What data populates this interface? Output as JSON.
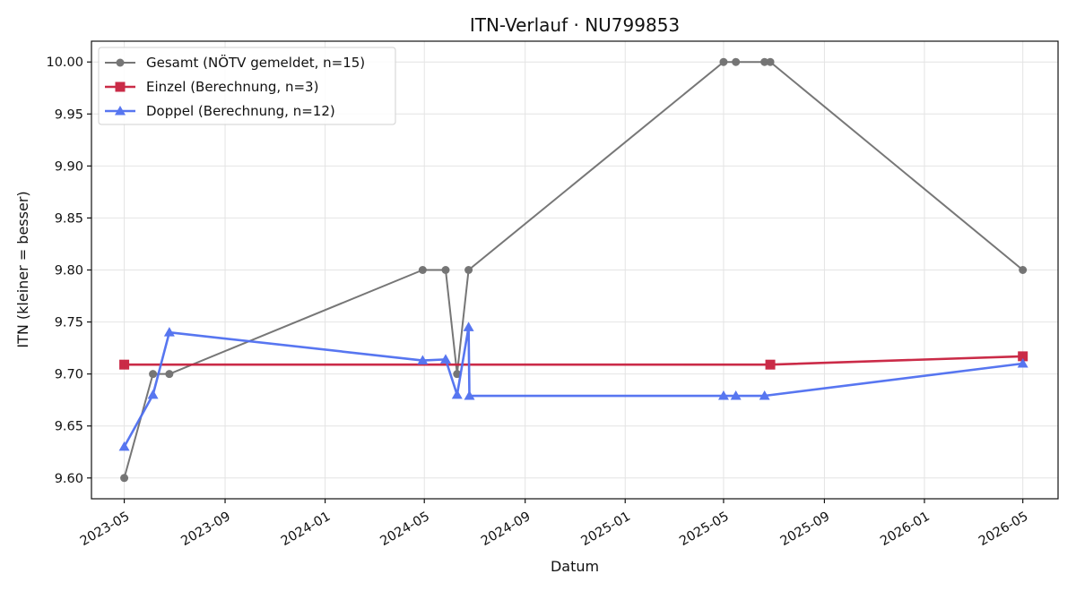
{
  "chart_data": {
    "type": "line",
    "title": "ITN-Verlauf · NU799853",
    "xlabel": "Datum",
    "ylabel": "ITN  (kleiner = besser)",
    "x_is_date": true,
    "xlim": [
      "2023-03-22",
      "2026-06-13"
    ],
    "ylim": [
      9.58,
      10.02
    ],
    "x_ticks": [
      "2023-05",
      "2023-09",
      "2024-01",
      "2024-05",
      "2024-09",
      "2025-01",
      "2025-05",
      "2025-09",
      "2026-01",
      "2026-05"
    ],
    "y_ticks": [
      "9.60",
      "9.65",
      "9.70",
      "9.75",
      "9.80",
      "9.85",
      "9.90",
      "9.95",
      "10.00"
    ],
    "grid": true,
    "legend_position": "top-left",
    "series": [
      {
        "name": "Gesamt (NÖTV gemeldet, n=15)",
        "color": "#555555",
        "marker": "circle",
        "points": [
          {
            "x": "2023-05-01",
            "y": 9.6
          },
          {
            "x": "2023-06-05",
            "y": 9.7
          },
          {
            "x": "2023-06-25",
            "y": 9.7
          },
          {
            "x": "2024-04-29",
            "y": 9.8
          },
          {
            "x": "2024-05-27",
            "y": 9.8
          },
          {
            "x": "2024-06-10",
            "y": 9.7
          },
          {
            "x": "2024-06-24",
            "y": 9.8
          },
          {
            "x": "2025-05-01",
            "y": 10.0
          },
          {
            "x": "2025-05-16",
            "y": 10.0
          },
          {
            "x": "2025-06-20",
            "y": 10.0
          },
          {
            "x": "2025-06-27",
            "y": 10.0
          },
          {
            "x": "2026-05-01",
            "y": 9.8
          }
        ]
      },
      {
        "name": "Einzel (Berechnung, n=3)",
        "color": "#c8203e",
        "marker": "square",
        "points": [
          {
            "x": "2023-05-01",
            "y": 9.709
          },
          {
            "x": "2025-06-27",
            "y": 9.709
          },
          {
            "x": "2026-05-01",
            "y": 9.717
          }
        ]
      },
      {
        "name": "Doppel (Berechnung, n=12)",
        "color": "#4f6ff0",
        "marker": "triangle",
        "points": [
          {
            "x": "2023-05-01",
            "y": 9.63
          },
          {
            "x": "2023-06-05",
            "y": 9.68
          },
          {
            "x": "2023-06-25",
            "y": 9.74
          },
          {
            "x": "2024-04-29",
            "y": 9.713
          },
          {
            "x": "2024-05-27",
            "y": 9.714
          },
          {
            "x": "2024-06-10",
            "y": 9.68
          },
          {
            "x": "2024-06-24",
            "y": 9.745
          },
          {
            "x": "2024-06-25",
            "y": 9.679
          },
          {
            "x": "2025-05-01",
            "y": 9.679
          },
          {
            "x": "2025-05-16",
            "y": 9.679
          },
          {
            "x": "2025-06-20",
            "y": 9.679
          },
          {
            "x": "2026-05-01",
            "y": 9.71
          }
        ]
      }
    ]
  }
}
